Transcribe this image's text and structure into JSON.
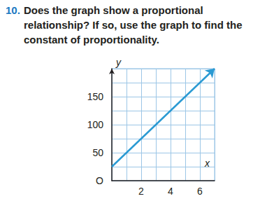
{
  "question": {
    "number": "10.",
    "text": "Does the graph show a proportional relationship? If so, use the graph to find the constant of proportionality."
  },
  "chart_data": {
    "type": "line",
    "x": [
      0,
      7
    ],
    "values": [
      25,
      200
    ],
    "color": "#2a9ad3",
    "xlabel": "x",
    "ylabel": "y",
    "xlim": [
      0,
      7
    ],
    "ylim": [
      0,
      200
    ],
    "xticks": [
      2,
      4,
      6
    ],
    "yticks": [
      {
        "value": 0,
        "label": "O"
      },
      50,
      100,
      150
    ],
    "grid": true,
    "marker": "arrow"
  }
}
